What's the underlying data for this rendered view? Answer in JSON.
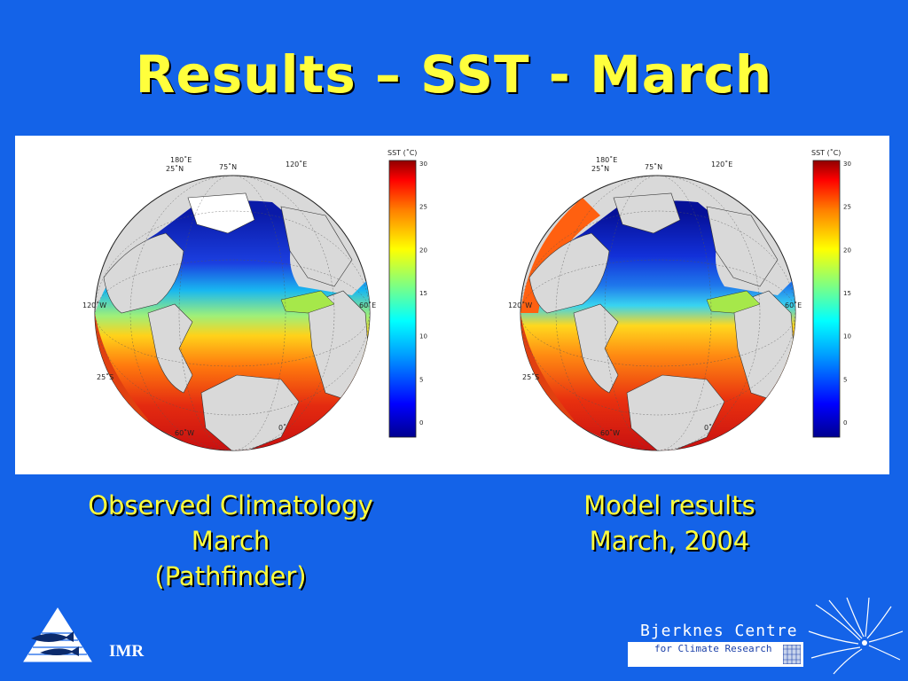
{
  "slide": {
    "title": "Results – SST - March"
  },
  "left_map": {
    "colorbar_label": "SST (˚C)",
    "colorbar_ticks": [
      "30",
      "25",
      "20",
      "15",
      "10",
      "5",
      "0"
    ],
    "lat_labels": [
      "25˚N",
      "75˚N",
      "25˚S"
    ],
    "lon_labels": [
      "180˚E",
      "120˚E",
      "120˚W",
      "60˚W",
      "60˚E",
      "0˚"
    ],
    "caption_lines": [
      "Observed Climatology",
      "March",
      "(Pathfinder)"
    ]
  },
  "right_map": {
    "colorbar_label": "SST (˚C)",
    "colorbar_ticks": [
      "30",
      "25",
      "20",
      "15",
      "10",
      "5",
      "0"
    ],
    "lat_labels": [
      "25˚N",
      "75˚N",
      "25˚S"
    ],
    "lon_labels": [
      "180˚E",
      "120˚E",
      "120˚W",
      "60˚W",
      "60˚E",
      "0˚"
    ],
    "caption_lines": [
      "Model results",
      "March, 2004"
    ]
  },
  "footer": {
    "imr_label": "IMR",
    "bjerknes_name": "Bjerknes Centre",
    "bjerknes_sub": "for Climate Research"
  },
  "colors": {
    "background": "#1463e8",
    "title": "#ffff3c"
  },
  "icons": [
    "imr-logo-icon",
    "bjerknes-swirl-icon"
  ]
}
